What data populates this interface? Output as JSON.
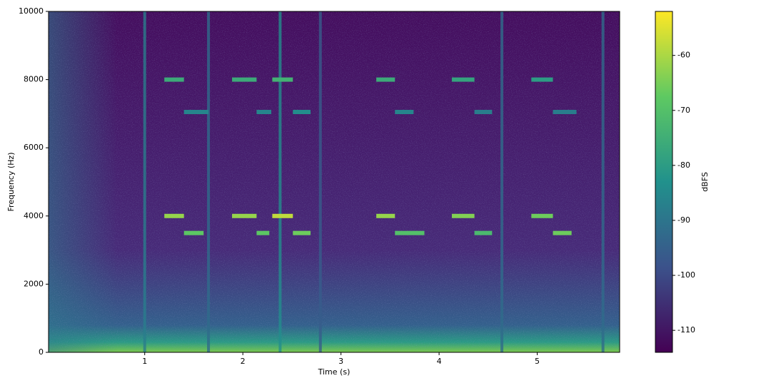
{
  "chart_data": {
    "type": "spectrogram",
    "xlabel": "Time (s)",
    "ylabel": "Frequency (Hz)",
    "xlim": [
      0.02,
      5.84
    ],
    "xticks": [
      1,
      2,
      3,
      4,
      5
    ],
    "ylim": [
      0,
      10000
    ],
    "yticks": [
      0,
      2000,
      4000,
      6000,
      8000,
      10000
    ],
    "colorbar_label": "dBFS",
    "clim": [
      -114,
      -52
    ],
    "cticks": [
      -60,
      -70,
      -80,
      -90,
      -100,
      -110
    ],
    "tones": {
      "t0": [
        1.2,
        1.4,
        1.2,
        1.4,
        1.89,
        2.14,
        1.89,
        2.14,
        2.3,
        2.51,
        2.3,
        2.51,
        3.36,
        3.55,
        3.36,
        3.55,
        4.13,
        4.36,
        4.13,
        4.36,
        4.94,
        5.16,
        4.94,
        5.16
      ],
      "t1": [
        1.4,
        1.65,
        1.4,
        1.6,
        2.14,
        2.29,
        2.14,
        2.27,
        2.51,
        2.69,
        2.51,
        2.69,
        3.55,
        3.74,
        3.55,
        3.85,
        4.36,
        4.54,
        4.36,
        4.54,
        5.16,
        5.4,
        5.16,
        5.35
      ],
      "freq": [
        8000,
        7050,
        4000,
        3500,
        8000,
        7050,
        4000,
        3500,
        8000,
        7050,
        4000,
        3500,
        8000,
        7050,
        4000,
        3500,
        8000,
        7050,
        4000,
        3500,
        8000,
        7050,
        4000,
        3500
      ],
      "level": [
        -76,
        -86,
        -62,
        -68,
        -76,
        -86,
        -62,
        -68,
        -74,
        -84,
        -58,
        -66,
        -76,
        -86,
        -62,
        -70,
        -78,
        -88,
        -64,
        -72,
        -80,
        -88,
        -66,
        -66
      ]
    },
    "transients": {
      "t": [
        1.0,
        1.65,
        2.38,
        2.79,
        4.64,
        5.67
      ],
      "level": [
        -88,
        -92,
        -84,
        -96,
        -92,
        -92
      ]
    }
  }
}
